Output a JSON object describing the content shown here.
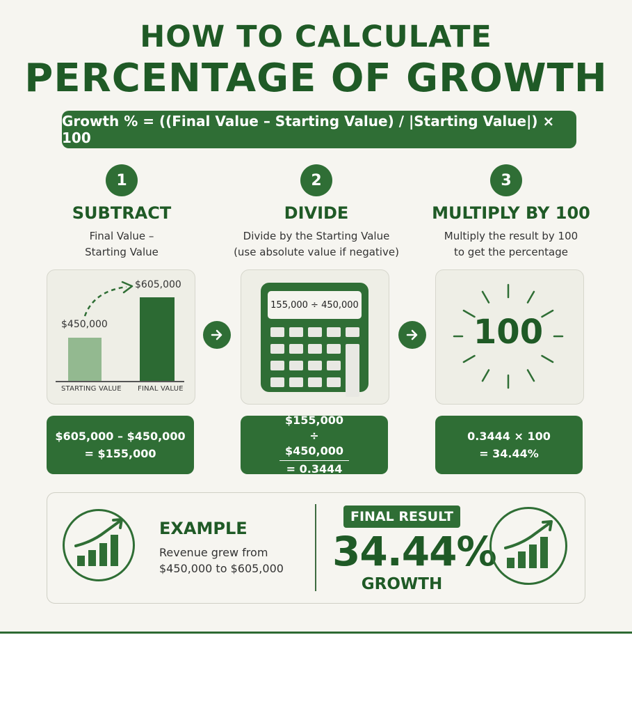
{
  "title": {
    "line1": "HOW TO CALCULATE",
    "line2": "PERCENTAGE OF GROWTH"
  },
  "formula": "Growth % = ((Final Value – Starting Value) / |Starting Value|) × 100",
  "steps": [
    {
      "number": "1",
      "title": "SUBTRACT",
      "desc_lines": [
        "Final Value –",
        "Starting Value"
      ],
      "chart": {
        "start_value_label": "$450,000",
        "final_value_label": "$605,000",
        "start_axis_label": "STARTING VALUE",
        "final_axis_label": "FINAL VALUE"
      },
      "result_lines": [
        "$605,000 – $450,000",
        "= $155,000"
      ]
    },
    {
      "number": "2",
      "title": "DIVIDE",
      "desc_lines": [
        "Divide by the Starting Value",
        "(use absolute value if negative)"
      ],
      "calculator_display": "155,000 ÷ 450,000",
      "result_lines": [
        "$155,000",
        "÷ $450,000",
        "= 0.3444"
      ]
    },
    {
      "number": "3",
      "title": "MULTIPLY BY 100",
      "desc_lines": [
        "Multiply the result by 100",
        "to get the percentage"
      ],
      "burst_text": "100",
      "result_lines": [
        "0.3444 × 100",
        "= 34.44%"
      ]
    }
  ],
  "example": {
    "heading": "EXAMPLE",
    "text_lines": [
      "Revenue grew from",
      "$450,000 to $605,000"
    ]
  },
  "final": {
    "badge": "FINAL RESULT",
    "value": "34.44%",
    "label": "GROWTH"
  },
  "icons": {
    "arrow": "arrow-right-icon",
    "chart": "growth-chart-icon",
    "calculator": "calculator-icon",
    "burst": "burst-icon"
  },
  "colors": {
    "primary": "#2f6e35",
    "title": "#1f5a26",
    "light_bar": "#93b990",
    "background": "#f6f5f0"
  }
}
